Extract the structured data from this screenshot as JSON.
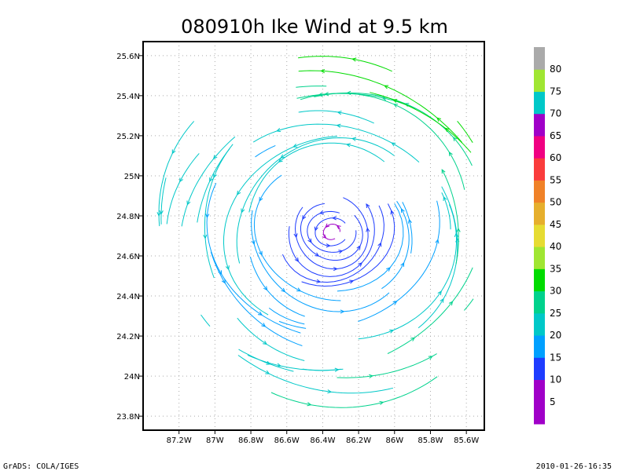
{
  "chart_data": {
    "type": "streamline",
    "title": "080910h Ike Wind at 9.5 km",
    "xlabel": "",
    "ylabel": "",
    "xlim": [
      -87.4,
      -85.5
    ],
    "ylim": [
      23.73,
      25.67
    ],
    "x_ticks": [
      {
        "value": -87.2,
        "label": "87.2W"
      },
      {
        "value": -87.0,
        "label": "87W"
      },
      {
        "value": -86.8,
        "label": "86.8W"
      },
      {
        "value": -86.6,
        "label": "86.6W"
      },
      {
        "value": -86.4,
        "label": "86.4W"
      },
      {
        "value": -86.2,
        "label": "86.2W"
      },
      {
        "value": -86.0,
        "label": "86W"
      },
      {
        "value": -85.8,
        "label": "85.8W"
      },
      {
        "value": -85.6,
        "label": "85.6W"
      }
    ],
    "y_ticks": [
      {
        "value": 23.8,
        "label": "23.8N"
      },
      {
        "value": 24.0,
        "label": "24N"
      },
      {
        "value": 24.2,
        "label": "24.2N"
      },
      {
        "value": 24.4,
        "label": "24.4N"
      },
      {
        "value": 24.6,
        "label": "24.6N"
      },
      {
        "value": 24.8,
        "label": "24.8N"
      },
      {
        "value": 25.0,
        "label": "25N"
      },
      {
        "value": 25.2,
        "label": "25.2N"
      },
      {
        "value": 25.4,
        "label": "25.4N"
      },
      {
        "value": 25.6,
        "label": "25.6N"
      }
    ],
    "grid": true,
    "vortex_center": {
      "lon": -86.35,
      "lat": 24.72
    },
    "wind_speed_range": [
      8,
      34
    ],
    "colorbar": {
      "levels": [
        5,
        10,
        15,
        20,
        25,
        30,
        35,
        40,
        45,
        50,
        55,
        60,
        65,
        70,
        75,
        80
      ],
      "colors": [
        "#a000c8",
        "#a000c8",
        "#1e3cff",
        "#00a0ff",
        "#00c8c8",
        "#00d28c",
        "#00dc00",
        "#a0e632",
        "#e6dc32",
        "#e6af2d",
        "#f08228",
        "#fa3c3c",
        "#f00082",
        "#a000c8",
        "#00c8c8",
        "#a0e632",
        "#aaaaaa"
      ]
    }
  },
  "footer": {
    "left": "GrADS: COLA/IGES",
    "right": "2010-01-26-16:35"
  }
}
